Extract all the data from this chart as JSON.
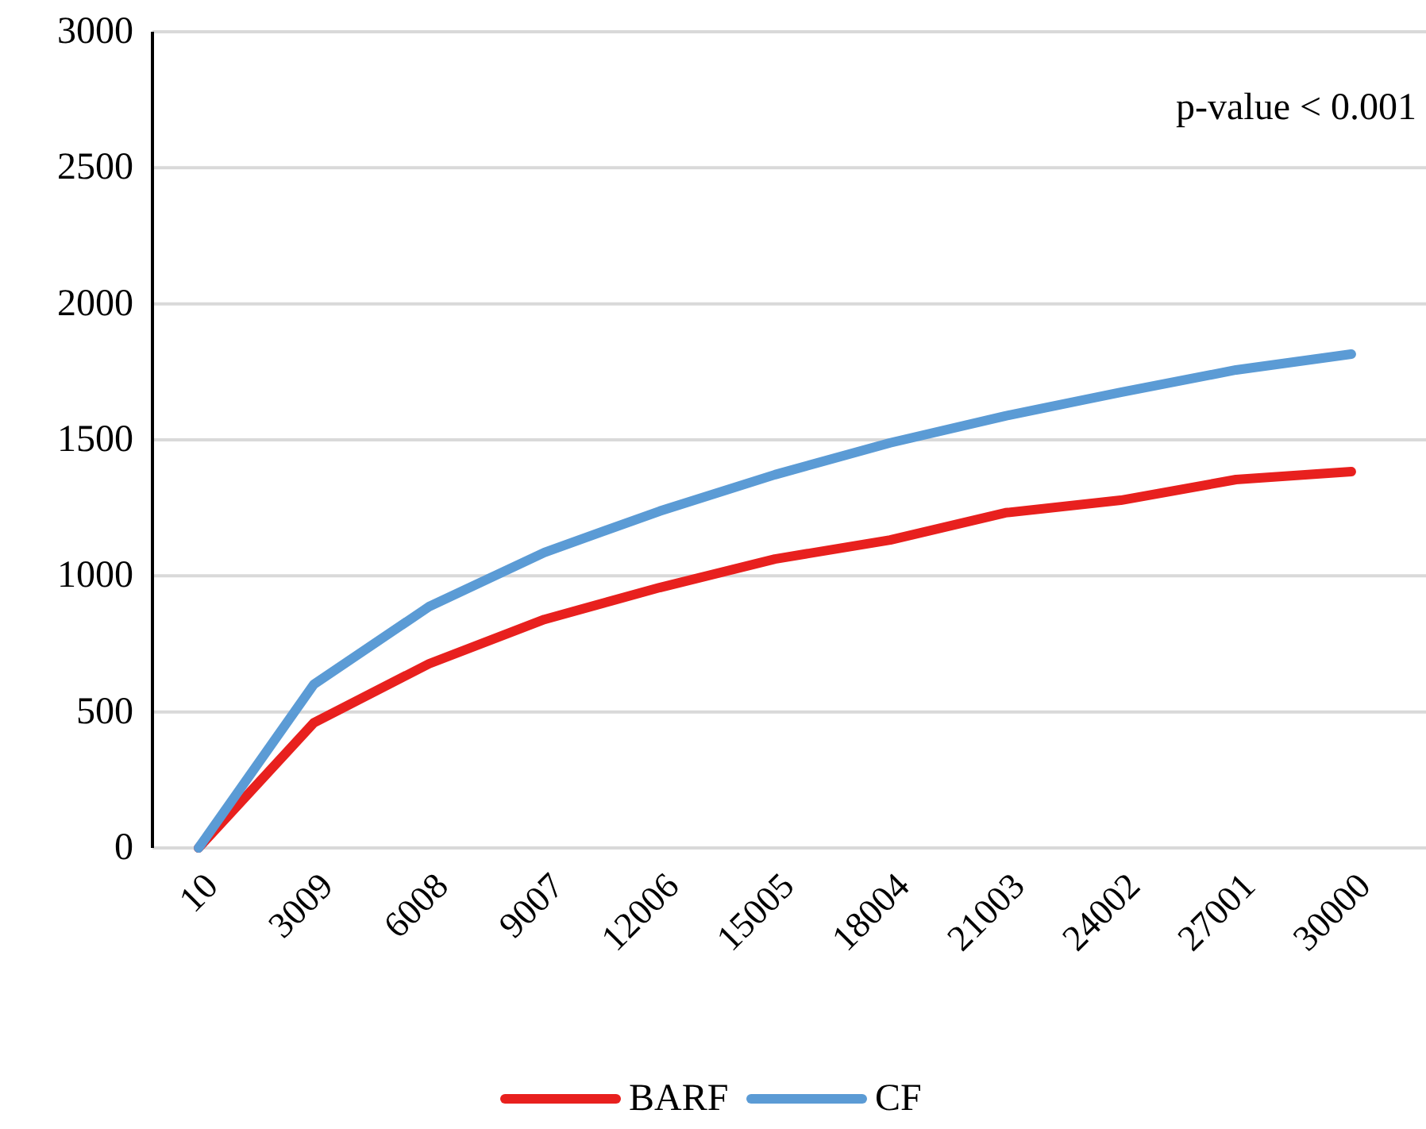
{
  "chart_data": {
    "type": "line",
    "categories": [
      "10",
      "3009",
      "6008",
      "9007",
      "12006",
      "15005",
      "18004",
      "21003",
      "24002",
      "27001",
      "30000"
    ],
    "series": [
      {
        "name": "BARF",
        "color": "#e8201e",
        "values": [
          0,
          460,
          677,
          840,
          957,
          1062,
          1132,
          1232,
          1278,
          1354,
          1383
        ]
      },
      {
        "name": "CF",
        "color": "#5b9bd5",
        "values": [
          0,
          601,
          887,
          1086,
          1238,
          1372,
          1489,
          1588,
          1675,
          1757,
          1815
        ]
      }
    ],
    "ylim": [
      0,
      3000
    ],
    "yticks": [
      0,
      500,
      1000,
      1500,
      2000,
      2500,
      3000
    ],
    "grid": "y",
    "legend": "bottom",
    "marker": "none",
    "line_style": "solid",
    "annotations": [
      "p-value < 0.001"
    ]
  }
}
